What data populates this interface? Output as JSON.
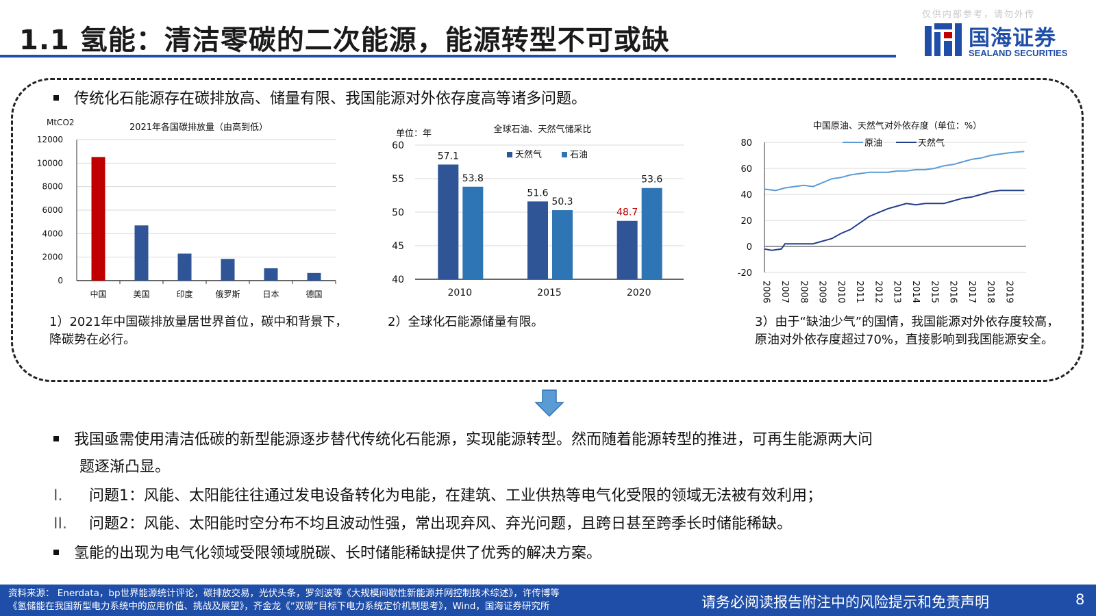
{
  "header": {
    "title": "1.1 氢能：清洁零碳的二次能源，能源转型不可或缺",
    "watermark": "仅供内部参考，请勿外传",
    "logo_cn": "国海证券",
    "logo_en": "SEALAND SECURITIES"
  },
  "top_bullet": "传统化石能源存在碳排放高、储量有限、我国能源对外依存度高等诸多问题。",
  "captions": {
    "c1": "1）2021年中国碳排放量居世界首位，碳中和背景下，降碳势在必行。",
    "c2": "2）全球化石能源储量有限。",
    "c3": "3）由于“缺油少气”的国情，我国能源对外依存度较高，原油对外依存度超过70%，直接影响到我国能源安全。"
  },
  "lower": {
    "b1": "我国亟需使用清洁低碳的新型能源逐步替代传统化石能源，实现能源转型。然而随着能源转型的推进，可再生能源两大问",
    "b1_cont": "题逐渐凸显。",
    "r1_num": "I.",
    "r1": "问题1：风能、太阳能往往通过发电设备转化为电能，在建筑、工业供热等电气化受限的领域无法被有效利用；",
    "r2_num": "II.",
    "r2": "问题2：风能、太阳能时空分布不均且波动性强，常出现弃风、弃光问题，且跨日甚至跨季长时储能稀缺。",
    "b2": "氢能的出现为电气化领域受限领域脱碳、长时储能稀缺提供了优秀的解决方案。"
  },
  "footer": {
    "source_line1": "资料来源：  Enerdata，bp世界能源统计评论，碳排放交易，光伏头条，罗剑波等《大规模间歇性新能源并网控制技术综述》，许传博等",
    "source_line2": "《氢储能在我国新型电力系统中的应用价值、挑战及展望》，齐金龙《“双碳”目标下电力系统定价机制思考》，Wind，国海证券研究所",
    "disclaimer": "请务必阅读报告附注中的风险提示和免责声明",
    "page": "8"
  },
  "colors": {
    "brand": "#1f4ea8",
    "china_red": "#c00000",
    "bar_blue": "#2f5597",
    "gas": "#2f5597",
    "oil": "#2e75b6",
    "crude_line": "#5b9bd5",
    "gas_line": "#1f3e8a",
    "highlight_red": "#c00000"
  },
  "chart_data": [
    {
      "type": "bar",
      "title": "2021年各国碳排放量（由高到低）",
      "unit": "MtCO2",
      "categories": [
        "中国",
        "美国",
        "印度",
        "俄罗斯",
        "日本",
        "德国"
      ],
      "values": [
        10520,
        4700,
        2300,
        1850,
        1050,
        650
      ],
      "yticks": [
        0,
        2000,
        4000,
        6000,
        8000,
        10000,
        12000
      ],
      "ylim": [
        0,
        12000
      ],
      "grid": true
    },
    {
      "type": "bar",
      "title": "全球石油、天然气储采比",
      "unit": "单位：年",
      "categories": [
        "2010",
        "2015",
        "2020"
      ],
      "series": [
        {
          "name": "天然气",
          "values": [
            57.1,
            51.6,
            48.7
          ]
        },
        {
          "name": "石油",
          "values": [
            53.8,
            50.3,
            53.6
          ]
        }
      ],
      "data_labels": [
        [
          "57.1",
          "51.6",
          "48.7"
        ],
        [
          "53.8",
          "50.3",
          "53.6"
        ]
      ],
      "yticks": [
        40,
        45,
        50,
        55,
        60
      ],
      "ylim": [
        40,
        60
      ],
      "legend": "top-center",
      "grid": true
    },
    {
      "type": "line",
      "title": "中国原油、天然气对外依存度（单位：%）",
      "x": [
        "2006",
        "2007",
        "2008",
        "2009",
        "2010",
        "2011",
        "2012",
        "2013",
        "2014",
        "2015",
        "2016",
        "2017",
        "2018",
        "2019"
      ],
      "yticks": [
        -20,
        0,
        20,
        40,
        60,
        80
      ],
      "ylim": [
        -20,
        80
      ],
      "series": [
        {
          "name": "原油",
          "values": [
            [
              2005.9,
              44
            ],
            [
              2006.5,
              43
            ],
            [
              2007,
              45
            ],
            [
              2007.5,
              46
            ],
            [
              2008,
              47
            ],
            [
              2008.5,
              46
            ],
            [
              2009,
              49
            ],
            [
              2009.5,
              52
            ],
            [
              2010,
              53
            ],
            [
              2010.5,
              55
            ],
            [
              2011,
              56
            ],
            [
              2011.5,
              57
            ],
            [
              2012,
              57
            ],
            [
              2012.5,
              57
            ],
            [
              2013,
              58
            ],
            [
              2013.5,
              58
            ],
            [
              2014,
              59
            ],
            [
              2014.5,
              59
            ],
            [
              2015,
              60
            ],
            [
              2015.5,
              62
            ],
            [
              2016,
              63
            ],
            [
              2016.5,
              65
            ],
            [
              2017,
              67
            ],
            [
              2017.5,
              68
            ],
            [
              2018,
              70
            ],
            [
              2018.5,
              71
            ],
            [
              2019,
              72
            ],
            [
              2019.8,
              73
            ]
          ]
        },
        {
          "name": "天然气",
          "values": [
            [
              2005.9,
              -2
            ],
            [
              2006.3,
              -3
            ],
            [
              2006.8,
              -2
            ],
            [
              2007,
              2
            ],
            [
              2007.5,
              2
            ],
            [
              2008,
              2
            ],
            [
              2008.5,
              2
            ],
            [
              2009,
              4
            ],
            [
              2009.5,
              6
            ],
            [
              2010,
              10
            ],
            [
              2010.5,
              13
            ],
            [
              2011,
              18
            ],
            [
              2011.5,
              23
            ],
            [
              2012,
              26
            ],
            [
              2012.5,
              29
            ],
            [
              2013,
              31
            ],
            [
              2013.5,
              33
            ],
            [
              2014,
              32
            ],
            [
              2014.5,
              33
            ],
            [
              2015,
              33
            ],
            [
              2015.5,
              33
            ],
            [
              2016,
              35
            ],
            [
              2016.5,
              37
            ],
            [
              2017,
              38
            ],
            [
              2017.5,
              40
            ],
            [
              2018,
              42
            ],
            [
              2018.5,
              43
            ],
            [
              2019,
              43
            ],
            [
              2019.8,
              43
            ]
          ]
        }
      ],
      "legend": "top",
      "grid": true
    }
  ]
}
